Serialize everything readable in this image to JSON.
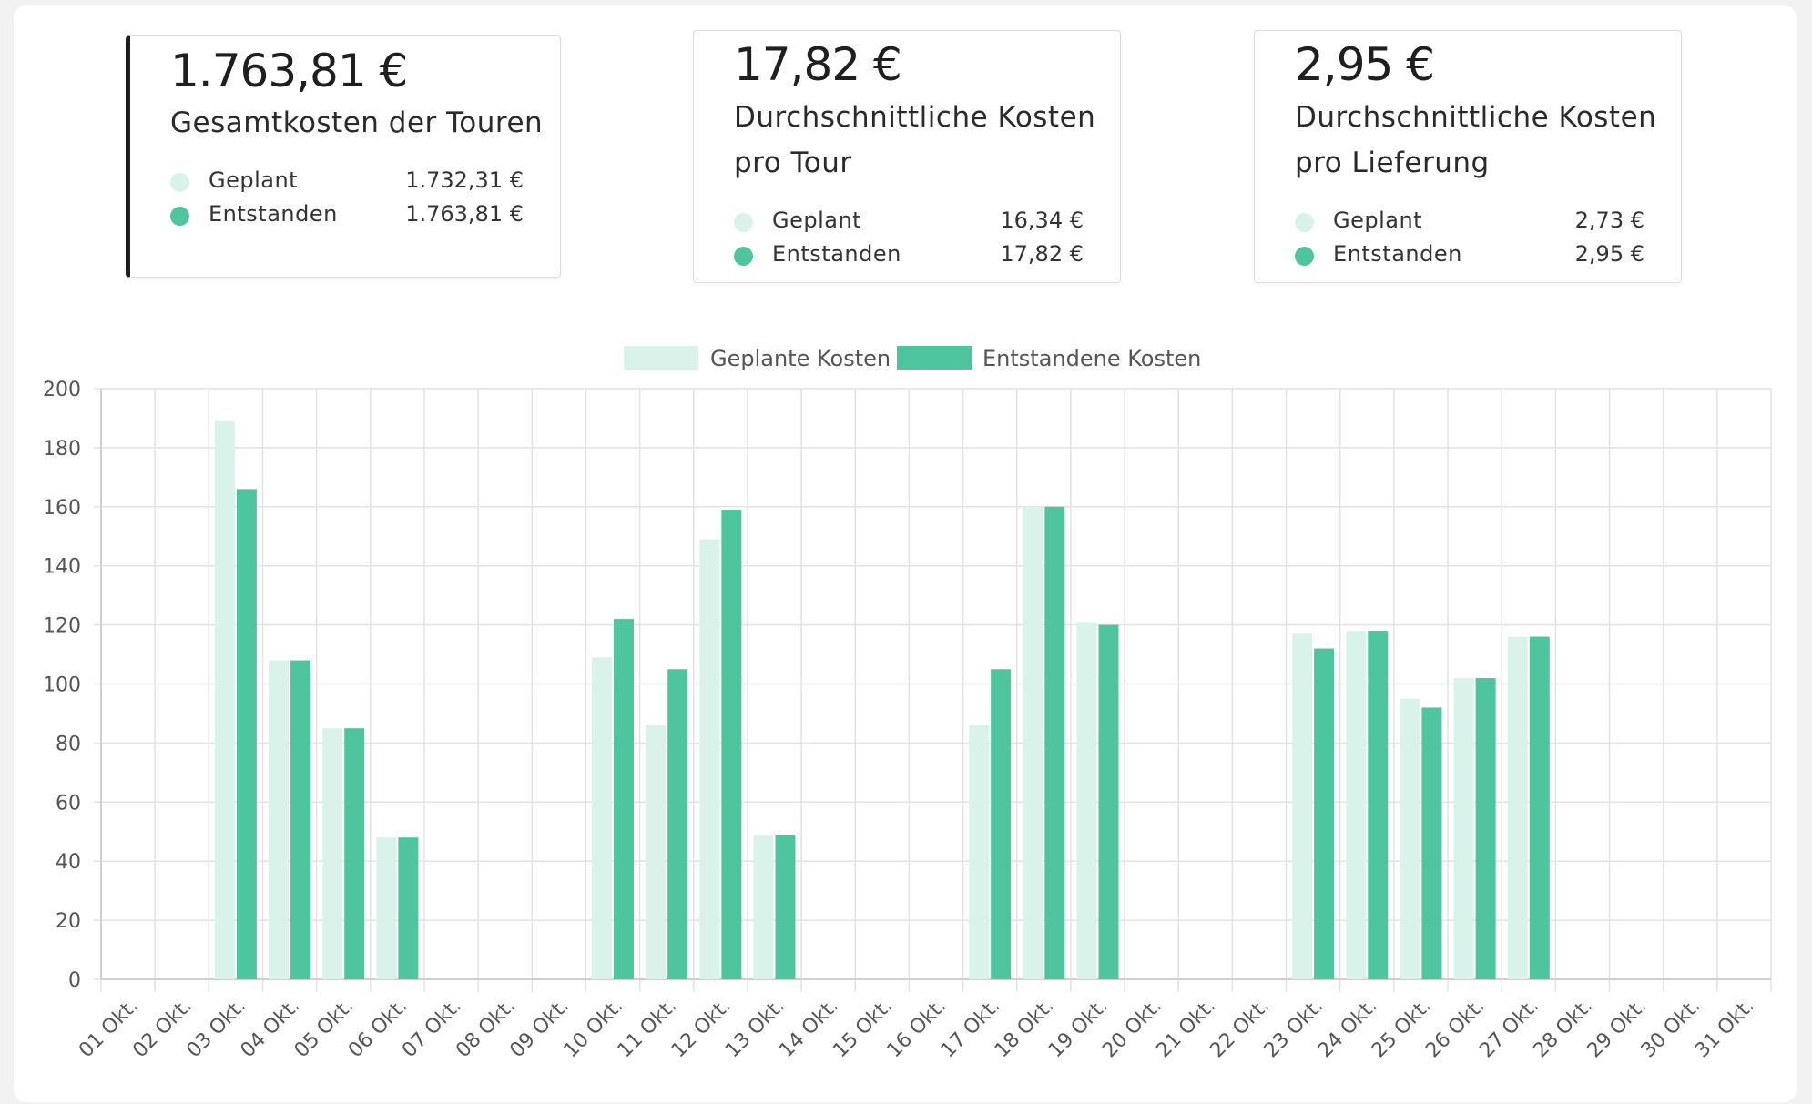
{
  "colors": {
    "planned": "#d9f3ea",
    "actual": "#4ec59f",
    "grid": "#e3e3e3",
    "axis": "#555555"
  },
  "cards": [
    {
      "amount": "1.763,81 €",
      "description": [
        "Gesamtkosten der Touren"
      ],
      "rows": [
        {
          "label": "Geplant",
          "value": "1.732,31 €"
        },
        {
          "label": "Entstanden",
          "value": "1.763,81 €"
        }
      ]
    },
    {
      "amount": "17,82 €",
      "description": [
        "Durchschnittliche Kosten",
        "pro Tour"
      ],
      "rows": [
        {
          "label": "Geplant",
          "value": "16,34 €"
        },
        {
          "label": "Entstanden",
          "value": "17,82 €"
        }
      ]
    },
    {
      "amount": "2,95 €",
      "description": [
        "Durchschnittliche Kosten",
        "pro Lieferung"
      ],
      "rows": [
        {
          "label": "Geplant",
          "value": "2,73 €"
        },
        {
          "label": "Entstanden",
          "value": "2,95 €"
        }
      ]
    }
  ],
  "chart_data": {
    "type": "bar",
    "categories": [
      "01 Okt.",
      "02 Okt.",
      "03 Okt.",
      "04 Okt.",
      "05 Okt.",
      "06 Okt.",
      "07 Okt.",
      "08 Okt.",
      "09 Okt.",
      "10 Okt.",
      "11 Okt.",
      "12 Okt.",
      "13 Okt.",
      "14 Okt.",
      "15 Okt.",
      "16 Okt.",
      "17 Okt.",
      "18 Okt.",
      "19 Okt.",
      "20 Okt.",
      "21 Okt.",
      "22 Okt.",
      "23 Okt.",
      "24 Okt.",
      "25 Okt.",
      "26 Okt.",
      "27 Okt.",
      "28 Okt.",
      "29 Okt.",
      "30 Okt.",
      "31 Okt."
    ],
    "series": [
      {
        "name": "Geplante Kosten",
        "values": [
          0,
          0,
          189,
          108,
          85,
          48,
          0,
          0,
          0,
          109,
          86,
          149,
          49,
          0,
          0,
          0,
          86,
          160,
          121,
          0,
          0,
          0,
          117,
          118,
          95,
          102,
          116,
          0,
          0,
          0,
          0
        ]
      },
      {
        "name": "Entstandene Kosten",
        "values": [
          0,
          0,
          166,
          108,
          85,
          48,
          0,
          0,
          0,
          122,
          105,
          159,
          49,
          0,
          0,
          0,
          105,
          160,
          120,
          0,
          0,
          0,
          112,
          118,
          92,
          102,
          116,
          0,
          0,
          0,
          0
        ]
      }
    ],
    "yticks": [
      0,
      20,
      40,
      60,
      80,
      100,
      120,
      140,
      160,
      180,
      200
    ],
    "ylim": [
      0,
      200
    ],
    "grid": true,
    "legend_position": "top-center"
  }
}
